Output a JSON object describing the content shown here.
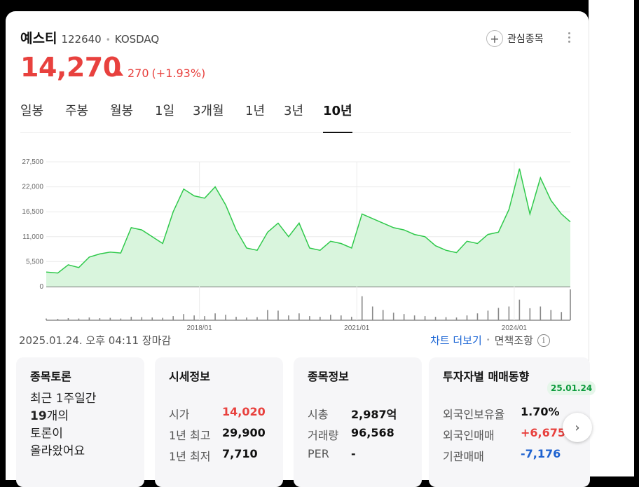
{
  "stock": {
    "name": "예스티",
    "code": "122640",
    "separator": "•",
    "market": "KOSDAQ",
    "price": "14,270",
    "change_amount": "270",
    "change_pct": "(+1.93%)",
    "favorite_label": "관심종목"
  },
  "tabs": [
    "일봉",
    "주봉",
    "월봉",
    "1일",
    "3개월",
    "1년",
    "3년",
    "10년"
  ],
  "active_tab": "10년",
  "chart_data": {
    "type": "area",
    "y_ticks": [
      "27,500",
      "22,000",
      "16,500",
      "11,000",
      "5,500",
      "0"
    ],
    "x_ticks": [
      "2018/01",
      "2021/01",
      "2024/01"
    ],
    "ylim": [
      0,
      27500
    ],
    "x": [
      2015.08,
      2015.3,
      2015.5,
      2015.7,
      2015.9,
      2016.1,
      2016.3,
      2016.5,
      2016.7,
      2016.9,
      2017.1,
      2017.3,
      2017.5,
      2017.7,
      2017.9,
      2018.1,
      2018.3,
      2018.5,
      2018.7,
      2018.9,
      2019.1,
      2019.3,
      2019.5,
      2019.7,
      2019.9,
      2020.1,
      2020.3,
      2020.5,
      2020.7,
      2020.9,
      2021.1,
      2021.3,
      2021.5,
      2021.7,
      2021.9,
      2022.1,
      2022.3,
      2022.5,
      2022.7,
      2022.9,
      2023.1,
      2023.3,
      2023.5,
      2023.7,
      2023.9,
      2024.1,
      2024.3,
      2024.5,
      2024.7,
      2024.9,
      2025.07
    ],
    "y": [
      3200,
      3000,
      4800,
      4200,
      6500,
      7200,
      7600,
      7400,
      13000,
      12500,
      11000,
      9500,
      16500,
      21500,
      20000,
      19500,
      22000,
      18000,
      12500,
      8500,
      8000,
      12000,
      14000,
      11000,
      14000,
      8500,
      8000,
      10000,
      9500,
      8500,
      16000,
      15000,
      14000,
      13000,
      12500,
      11500,
      11000,
      9000,
      8000,
      7500,
      10000,
      9500,
      11500,
      12000,
      17000,
      26000,
      16000,
      24000,
      19000,
      16000,
      14270
    ],
    "volume": [
      5,
      4,
      6,
      5,
      8,
      6,
      7,
      5,
      10,
      9,
      8,
      7,
      12,
      18,
      14,
      12,
      20,
      16,
      10,
      8,
      9,
      30,
      28,
      14,
      20,
      12,
      10,
      16,
      14,
      10,
      70,
      40,
      30,
      22,
      18,
      14,
      12,
      10,
      9,
      8,
      14,
      20,
      28,
      36,
      40,
      60,
      35,
      40,
      30,
      24,
      90
    ]
  },
  "timestamp": "2025.01.24. 오후 04:11 장마감",
  "links": {
    "more_chart": "차트 더보기",
    "separator": "•",
    "disclaimer": "면책조항",
    "info_icon": "i"
  },
  "discussion": {
    "title": "종목토론",
    "line1": "최근 1주일간",
    "line2_count": "19",
    "line2_suffix": "개의",
    "line3": "토론이",
    "line4": "올라왔어요"
  },
  "quote": {
    "title": "시세정보",
    "rows": [
      {
        "label": "시가",
        "value": "14,020"
      },
      {
        "label": "1년 최고",
        "value": "29,900"
      },
      {
        "label": "1년 최저",
        "value": "7,710"
      }
    ]
  },
  "company": {
    "title": "종목정보",
    "rows": [
      {
        "label": "시총",
        "value": "2,987억"
      },
      {
        "label": "거래량",
        "value": "96,568"
      },
      {
        "label": "PER",
        "value": "-"
      }
    ]
  },
  "investors": {
    "title": "투자자별 매매동향",
    "badge": "25.01.24",
    "rows": [
      {
        "label": "외국인보유율",
        "value": "1.70%"
      },
      {
        "label": "외국인매매",
        "value": "+6,675"
      },
      {
        "label": "기관매매",
        "value": "-7,176"
      }
    ]
  },
  "colors": {
    "up": "#e8413e",
    "down": "#1e62d0",
    "link": "#1863d4",
    "line": "#2fc94b",
    "area": "#d9f5dd"
  },
  "icons": {
    "plus": "plus-icon",
    "more": "more-vertical-icon",
    "next": "chevron-right-icon"
  }
}
